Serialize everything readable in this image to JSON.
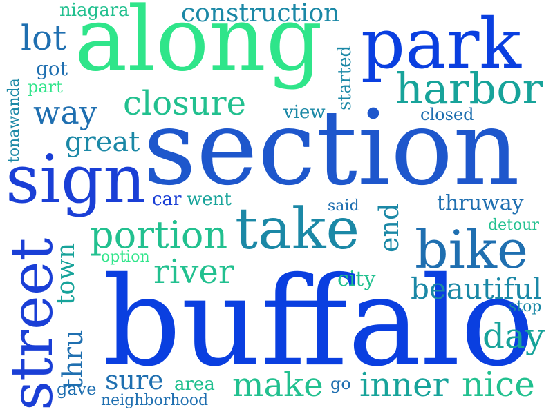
{
  "words": {
    "buffalo": "buffalo",
    "section": "section",
    "along": "along",
    "park": "park",
    "sign": "sign",
    "street": "street",
    "take": "take",
    "bike": "bike",
    "harbor": "harbor",
    "portion": "portion",
    "closure": "closure",
    "construction": "construction",
    "lot": "lot",
    "way": "way",
    "river": "river",
    "day": "day",
    "nice": "nice",
    "make": "make",
    "inner": "inner",
    "beautiful": "beautiful",
    "great": "great",
    "sure": "sure",
    "end": "end",
    "thruway": "thruway",
    "town": "town",
    "thru": "thru",
    "niagara": "niagara",
    "got": "got",
    "part": "part",
    "tonawanda": "tonawanda",
    "view": "view",
    "started": "started",
    "closed": "closed",
    "car": "car",
    "went": "went",
    "said": "said",
    "detour": "detour",
    "option": "option",
    "city": "city",
    "stop": "stop",
    "gave": "gave",
    "area": "area",
    "go": "go",
    "neighborhood": "neighborhood"
  },
  "colors": {
    "deep_blue": "#0a3fe0",
    "royal_blue": "#1a3fd6",
    "blue": "#1e57cc",
    "steel_blue": "#1f6fb0",
    "teal_blue": "#1b88a6",
    "teal": "#17a39a",
    "sea_green": "#22c08f",
    "mint": "#2fe58a"
  }
}
